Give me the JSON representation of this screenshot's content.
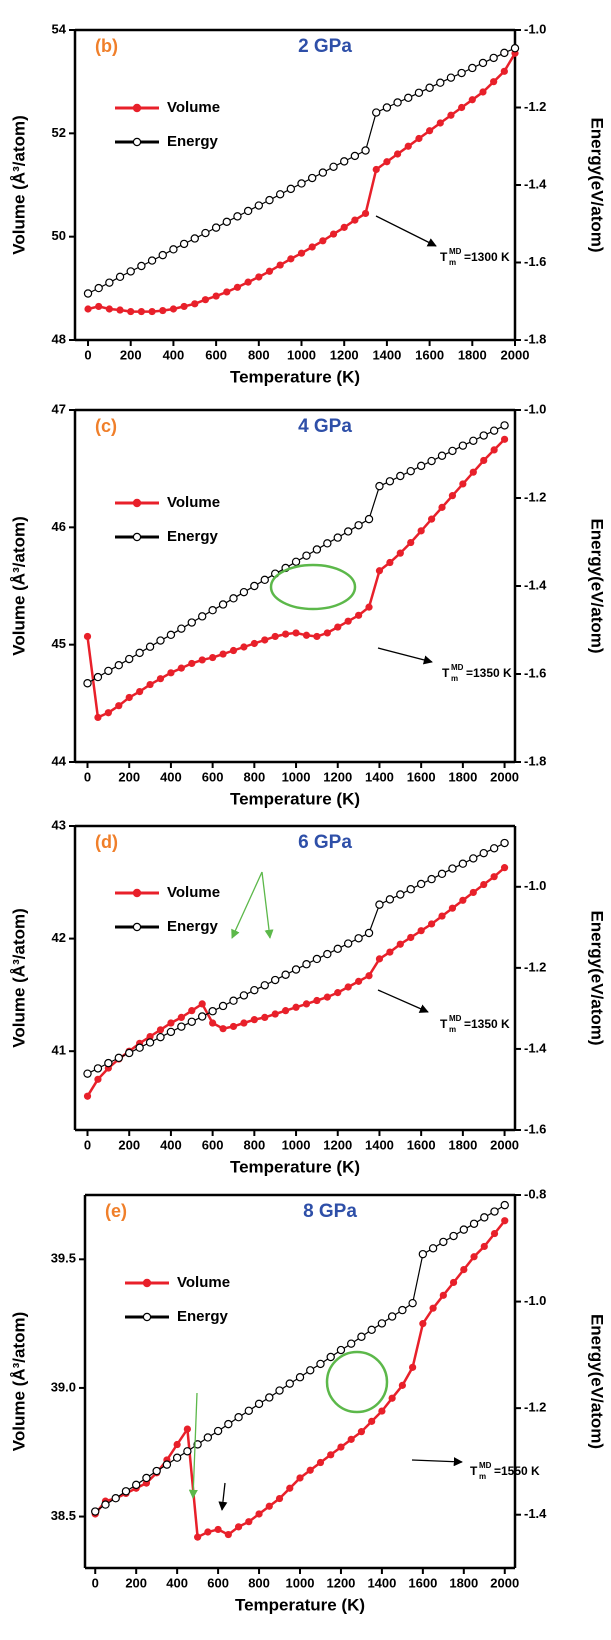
{
  "chart_data": [
    {
      "type": "line",
      "label": "(b)",
      "title": "2 GPa",
      "xlabel": "Temperature (K)",
      "ylabel": "Volume (Å³/atom)",
      "y2label": "Energy(eV/atom)",
      "annotation": {
        "base": "T",
        "sub": "m",
        "sup": "MD",
        "value": "=1300 K"
      },
      "legend": "upper left",
      "x": [
        0,
        50,
        100,
        150,
        200,
        250,
        300,
        350,
        400,
        450,
        500,
        550,
        600,
        650,
        700,
        750,
        800,
        850,
        900,
        950,
        1000,
        1050,
        1100,
        1150,
        1200,
        1250,
        1300,
        1350,
        1400,
        1450,
        1500,
        1550,
        1600,
        1650,
        1700,
        1750,
        1800,
        1850,
        1900,
        1950,
        2000
      ],
      "xlim": [
        -61,
        2000
      ],
      "xticks": [
        0,
        200,
        400,
        600,
        800,
        1000,
        1200,
        1400,
        1600,
        1800,
        2000
      ],
      "ylim": [
        48,
        54
      ],
      "yticks": [
        48,
        50,
        52,
        54
      ],
      "y2lim": [
        -1.8,
        -1.0
      ],
      "y2ticks": [
        -1.8,
        -1.6,
        -1.4,
        -1.2,
        {
          "value": -1.0,
          "label": "-1.0"
        }
      ],
      "series": [
        {
          "name": "Volume",
          "color": "#e8202a",
          "values": [
            48.6,
            48.65,
            48.6,
            48.58,
            48.55,
            48.55,
            48.55,
            48.57,
            48.6,
            48.65,
            48.7,
            48.78,
            48.85,
            48.93,
            49.02,
            49.12,
            49.22,
            49.33,
            49.45,
            49.57,
            49.68,
            49.8,
            49.92,
            50.05,
            50.18,
            50.32,
            50.45,
            51.3,
            51.45,
            51.6,
            51.75,
            51.9,
            52.05,
            52.2,
            52.35,
            52.5,
            52.65,
            52.8,
            53.0,
            53.2,
            53.55
          ]
        },
        {
          "name": "Energy",
          "color": "#000000",
          "axis": "y2",
          "values": [
            -1.68,
            -1.666,
            -1.652,
            -1.637,
            -1.623,
            -1.609,
            -1.595,
            -1.581,
            -1.566,
            -1.552,
            -1.538,
            -1.524,
            -1.51,
            -1.495,
            -1.481,
            -1.467,
            -1.453,
            -1.439,
            -1.424,
            -1.41,
            -1.396,
            -1.382,
            -1.368,
            -1.353,
            -1.339,
            -1.325,
            -1.311,
            -1.213,
            -1.2,
            -1.187,
            -1.175,
            -1.162,
            -1.149,
            -1.136,
            -1.123,
            -1.111,
            -1.098,
            -1.085,
            -1.072,
            -1.059,
            -1.047
          ]
        }
      ]
    },
    {
      "type": "line",
      "label": "(c)",
      "title": "4 GPa",
      "xlabel": "Temperature (K)",
      "ylabel": "Volume (Å³/atom)",
      "y2label": "Energy(eV/atom)",
      "annotation": {
        "base": "T",
        "sub": "m",
        "sup": "MD",
        "value": "=1350 K"
      },
      "legend": "upper left",
      "x": [
        0,
        50,
        100,
        150,
        200,
        250,
        300,
        350,
        400,
        450,
        500,
        550,
        600,
        650,
        700,
        750,
        800,
        850,
        900,
        950,
        1000,
        1050,
        1100,
        1150,
        1200,
        1250,
        1300,
        1350,
        1400,
        1450,
        1500,
        1550,
        1600,
        1650,
        1700,
        1750,
        1800,
        1850,
        1900,
        1950,
        2000
      ],
      "xlim": [
        -60,
        2050
      ],
      "xticks": [
        0,
        200,
        400,
        600,
        800,
        1000,
        1200,
        1400,
        1600,
        1800,
        2000
      ],
      "ylim": [
        44,
        47
      ],
      "yticks": [
        44,
        45,
        46,
        47
      ],
      "y2lim": [
        -1.8,
        -1.0
      ],
      "y2ticks": [
        -1.8,
        -1.6,
        -1.4,
        -1.2,
        {
          "value": -1.0,
          "label": "-1.0"
        }
      ],
      "series": [
        {
          "name": "Volume",
          "color": "#e8202a",
          "values": [
            45.07,
            44.38,
            44.42,
            44.48,
            44.55,
            44.6,
            44.66,
            44.71,
            44.76,
            44.8,
            44.84,
            44.87,
            44.89,
            44.92,
            44.95,
            44.98,
            45.01,
            45.04,
            45.07,
            45.09,
            45.1,
            45.08,
            45.07,
            45.1,
            45.15,
            45.2,
            45.25,
            45.32,
            45.63,
            45.7,
            45.78,
            45.87,
            45.97,
            46.07,
            46.17,
            46.27,
            46.37,
            46.47,
            46.57,
            46.66,
            46.75
          ]
        },
        {
          "name": "Energy",
          "color": "#000000",
          "axis": "y2",
          "values": [
            -1.621,
            -1.607,
            -1.593,
            -1.58,
            -1.566,
            -1.552,
            -1.538,
            -1.524,
            -1.511,
            -1.497,
            -1.483,
            -1.469,
            -1.455,
            -1.442,
            -1.428,
            -1.414,
            -1.4,
            -1.386,
            -1.372,
            -1.359,
            -1.345,
            -1.331,
            -1.317,
            -1.303,
            -1.29,
            -1.276,
            -1.262,
            -1.248,
            -1.173,
            -1.162,
            -1.15,
            -1.139,
            -1.127,
            -1.116,
            -1.104,
            -1.093,
            -1.081,
            -1.07,
            -1.058,
            -1.047,
            -1.035
          ]
        }
      ]
    },
    {
      "type": "line",
      "label": "(d)",
      "title": "6 GPa",
      "xlabel": "Temperature (K)",
      "ylabel": "Volume (Å³/atom)",
      "y2label": "Energy(eV/atom)",
      "annotation": {
        "base": "T",
        "sub": "m",
        "sup": "MD",
        "value": "=1350 K"
      },
      "legend": "upper left",
      "x": [
        0,
        50,
        100,
        150,
        200,
        250,
        300,
        350,
        400,
        450,
        500,
        550,
        600,
        650,
        700,
        750,
        800,
        850,
        900,
        950,
        1000,
        1050,
        1100,
        1150,
        1200,
        1250,
        1300,
        1350,
        1400,
        1450,
        1500,
        1550,
        1600,
        1650,
        1700,
        1750,
        1800,
        1850,
        1900,
        1950,
        2000
      ],
      "xlim": [
        -60,
        2050
      ],
      "xticks": [
        0,
        200,
        400,
        600,
        800,
        1000,
        1200,
        1400,
        1600,
        1800,
        2000
      ],
      "ylim": [
        40.3,
        43
      ],
      "yticks": [
        41,
        42,
        43
      ],
      "y2lim": [
        -1.6,
        -0.85
      ],
      "y2ticks": [
        -1.6,
        -1.4,
        -1.2,
        {
          "value": -1.0,
          "label": "-1.0"
        }
      ],
      "series": [
        {
          "name": "Volume",
          "color": "#e8202a",
          "values": [
            40.6,
            40.75,
            40.85,
            40.93,
            41.0,
            41.07,
            41.13,
            41.19,
            41.25,
            41.3,
            41.36,
            41.42,
            41.25,
            41.2,
            41.22,
            41.25,
            41.28,
            41.3,
            41.33,
            41.36,
            41.39,
            41.42,
            41.45,
            41.48,
            41.52,
            41.57,
            41.62,
            41.67,
            41.82,
            41.88,
            41.95,
            42.01,
            42.07,
            42.13,
            42.2,
            42.27,
            42.34,
            42.41,
            42.48,
            42.55,
            42.63
          ]
        },
        {
          "name": "Energy",
          "color": "#000000",
          "axis": "y2",
          "values": [
            -1.461,
            -1.448,
            -1.435,
            -1.422,
            -1.41,
            -1.397,
            -1.384,
            -1.371,
            -1.358,
            -1.345,
            -1.333,
            -1.32,
            -1.307,
            -1.294,
            -1.281,
            -1.268,
            -1.255,
            -1.243,
            -1.23,
            -1.217,
            -1.204,
            -1.191,
            -1.178,
            -1.166,
            -1.153,
            -1.14,
            -1.127,
            -1.114,
            -1.044,
            -1.031,
            -1.019,
            -1.006,
            -0.993,
            -0.981,
            -0.968,
            -0.955,
            -0.943,
            -0.93,
            -0.917,
            -0.905,
            -0.892
          ]
        }
      ]
    },
    {
      "type": "line",
      "label": "(e)",
      "title": "8 GPa",
      "xlabel": "Temperature (K)",
      "ylabel": "Volume (Å³/atom)",
      "y2label": "Energy(eV/atom)",
      "annotation": {
        "base": "T",
        "sub": "m",
        "sup": "MD",
        "value": "=1550 K"
      },
      "legend": "upper left",
      "x": [
        0,
        50,
        100,
        150,
        200,
        250,
        300,
        350,
        400,
        450,
        500,
        550,
        600,
        650,
        700,
        750,
        800,
        850,
        900,
        950,
        1000,
        1050,
        1100,
        1150,
        1200,
        1250,
        1300,
        1350,
        1400,
        1450,
        1500,
        1550,
        1600,
        1650,
        1700,
        1750,
        1800,
        1850,
        1900,
        1950,
        2000
      ],
      "xlim": [
        -50,
        2050
      ],
      "xticks": [
        0,
        200,
        400,
        600,
        800,
        1000,
        1200,
        1400,
        1600,
        1800,
        2000
      ],
      "ylim": [
        38.3,
        39.75
      ],
      "yticks": [
        38.5,
        {
          "value": 39,
          "label": "39.0"
        },
        39.5
      ],
      "y2lim": [
        -1.5,
        -0.8
      ],
      "y2ticks": [
        -1.4,
        -1.2,
        {
          "value": -1.0,
          "label": "-1.0"
        },
        -0.8
      ],
      "series": [
        {
          "name": "Volume",
          "color": "#e8202a",
          "values": [
            38.51,
            38.56,
            38.57,
            38.59,
            38.61,
            38.63,
            38.67,
            38.72,
            38.78,
            38.84,
            38.42,
            38.44,
            38.45,
            38.43,
            38.46,
            38.48,
            38.51,
            38.54,
            38.57,
            38.61,
            38.65,
            38.68,
            38.71,
            38.74,
            38.77,
            38.8,
            38.83,
            38.87,
            38.91,
            38.96,
            39.01,
            39.08,
            39.25,
            39.31,
            39.36,
            39.41,
            39.46,
            39.51,
            39.55,
            39.6,
            39.65
          ]
        },
        {
          "name": "Energy",
          "color": "#000000",
          "axis": "y2",
          "values": [
            -1.394,
            -1.381,
            -1.369,
            -1.356,
            -1.344,
            -1.331,
            -1.318,
            -1.306,
            -1.293,
            -1.281,
            -1.268,
            -1.255,
            -1.243,
            -1.23,
            -1.217,
            -1.205,
            -1.192,
            -1.18,
            -1.167,
            -1.154,
            -1.142,
            -1.129,
            -1.117,
            -1.104,
            -1.091,
            -1.079,
            -1.066,
            -1.053,
            -1.041,
            -1.028,
            -1.016,
            -1.003,
            -0.911,
            -0.9,
            -0.888,
            -0.877,
            -0.865,
            -0.854,
            -0.842,
            -0.831,
            -0.819
          ]
        }
      ]
    }
  ]
}
